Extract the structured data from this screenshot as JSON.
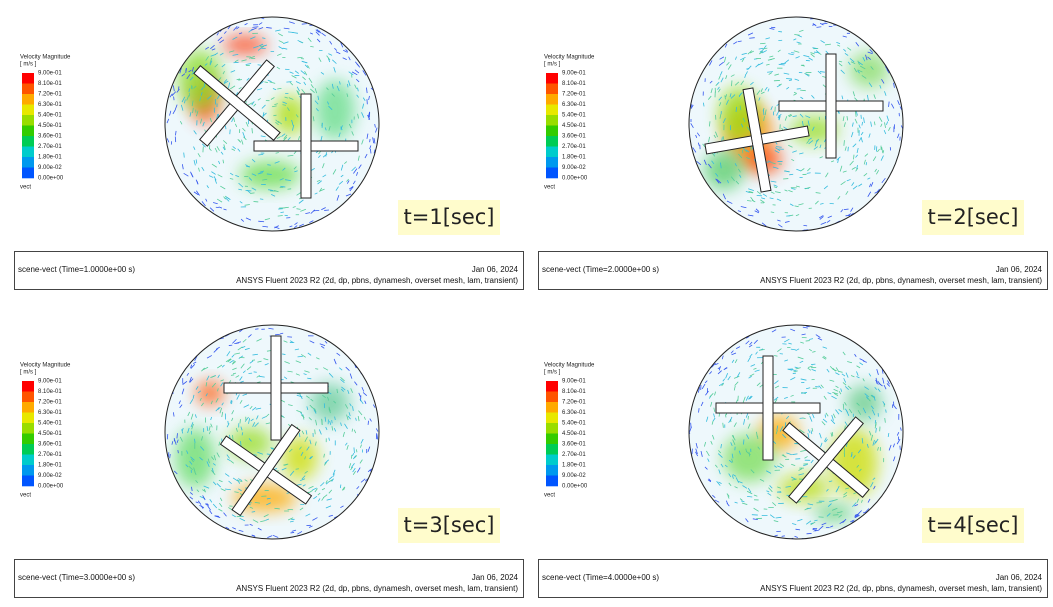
{
  "panels": [
    {
      "legend": {
        "title": "Velocity Magnitude",
        "unit": "[ m/s ]",
        "labels": [
          "9.00e-01",
          "8.10e-01",
          "7.20e-01",
          "6.30e-01",
          "5.40e-01",
          "4.50e-01",
          "3.60e-01",
          "2.70e-01",
          "1.80e-01",
          "9.00e-02",
          "0.00e+00"
        ],
        "footer": "vect"
      },
      "time_label": "t=1[sec]",
      "footer": {
        "scene": "scene-vect  (Time=1.0000e+00 s)",
        "date": "Jan 06, 2024",
        "solver": "ANSYS Fluent 2023 R2 (2d, dp, pbns, dynamesh, overset mesh, lam, transient)"
      }
    },
    {
      "legend": {
        "title": "Velocity Magnitude",
        "unit": "[ m/s ]",
        "labels": [
          "9.00e-01",
          "8.10e-01",
          "7.20e-01",
          "6.30e-01",
          "5.40e-01",
          "4.50e-01",
          "3.60e-01",
          "2.70e-01",
          "1.80e-01",
          "9.00e-02",
          "0.00e+00"
        ],
        "footer": "vect"
      },
      "time_label": "t=2[sec]",
      "footer": {
        "scene": "scene-vect  (Time=2.0000e+00 s)",
        "date": "Jan 06, 2024",
        "solver": "ANSYS Fluent 2023 R2 (2d, dp, pbns, dynamesh, overset mesh, lam, transient)"
      }
    },
    {
      "legend": {
        "title": "Velocity Magnitude",
        "unit": "[ m/s ]",
        "labels": [
          "9.00e-01",
          "8.10e-01",
          "7.20e-01",
          "6.30e-01",
          "5.40e-01",
          "4.50e-01",
          "3.60e-01",
          "2.70e-01",
          "1.80e-01",
          "9.00e-02",
          "0.00e+00"
        ],
        "footer": "vect"
      },
      "time_label": "t=3[sec]",
      "footer": {
        "scene": "scene-vect  (Time=3.0000e+00 s)",
        "date": "Jan 06, 2024",
        "solver": "ANSYS Fluent 2023 R2 (2d, dp, pbns, dynamesh, overset mesh, lam, transient)"
      }
    },
    {
      "legend": {
        "title": "Velocity Magnitude",
        "unit": "[ m/s ]",
        "labels": [
          "9.00e-01",
          "8.10e-01",
          "7.20e-01",
          "6.30e-01",
          "5.40e-01",
          "4.50e-01",
          "3.60e-01",
          "2.70e-01",
          "1.80e-01",
          "9.00e-02",
          "0.00e+00"
        ],
        "footer": "vect"
      },
      "time_label": "t=4[sec]",
      "footer": {
        "scene": "scene-vect  (Time=4.0000e+00 s)",
        "date": "Jan 06, 2024",
        "solver": "ANSYS Fluent 2023 R2 (2d, dp, pbns, dynamesh, overset mesh, lam, transient)"
      }
    }
  ]
}
